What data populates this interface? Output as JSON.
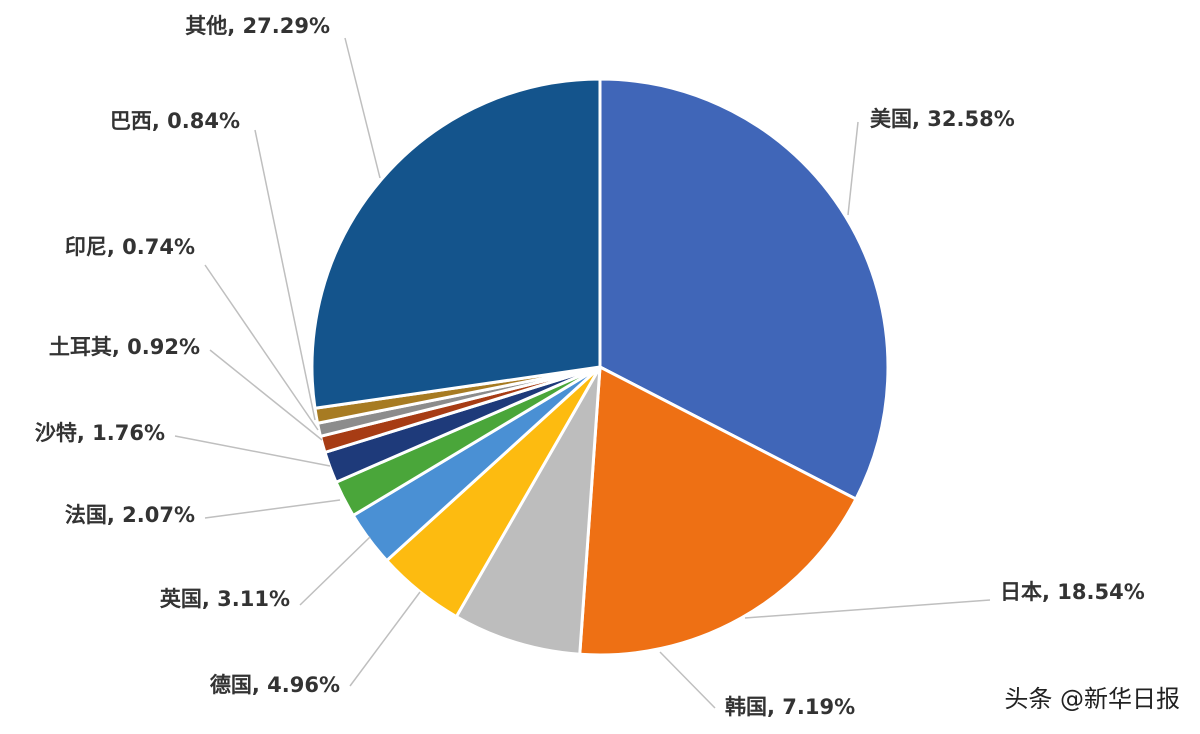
{
  "chart_data": {
    "type": "pie",
    "categories": [
      "美国",
      "日本",
      "韩国",
      "德国",
      "英国",
      "法国",
      "沙特",
      "土耳其",
      "印尼",
      "巴西",
      "其他"
    ],
    "values": [
      32.58,
      18.54,
      7.19,
      4.96,
      3.11,
      2.07,
      1.76,
      0.92,
      0.74,
      0.84,
      27.29
    ],
    "value_labels": [
      "32.58%",
      "18.54%",
      "7.19%",
      "4.96%",
      "3.11%",
      "2.07%",
      "1.76%",
      "0.92%",
      "0.74%",
      "0.84%",
      "27.29%"
    ],
    "label_separator": ", ",
    "colors": [
      "#4066b8",
      "#ee7014",
      "#bdbdbd",
      "#fdbb10",
      "#4a90d4",
      "#4aa63a",
      "#1e3a7a",
      "#a73c14",
      "#8c8c8c",
      "#a77b22",
      "#14548c"
    ],
    "watermark": "头条 @新华日报"
  }
}
